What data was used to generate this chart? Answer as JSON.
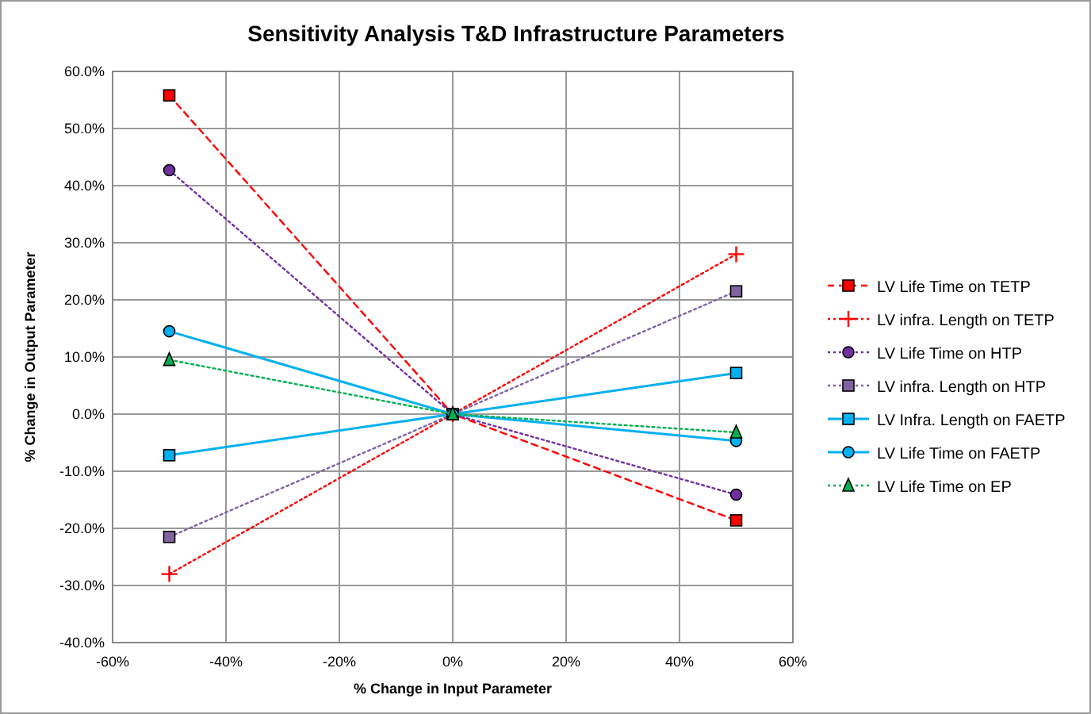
{
  "chart_data": {
    "type": "line",
    "title": "Sensitivity Analysis T&D Infrastructure Parameters",
    "xlabel": "% Change in Input Parameter",
    "ylabel": "% Change in Output Parameter",
    "x": [
      -50,
      0,
      50
    ],
    "xlim": [
      -60,
      60
    ],
    "ylim": [
      -40,
      60
    ],
    "xticks": [
      {
        "value": -60,
        "label": "-60%"
      },
      {
        "value": -40,
        "label": "-40%"
      },
      {
        "value": -20,
        "label": "-20%"
      },
      {
        "value": 0,
        "label": "0%"
      },
      {
        "value": 20,
        "label": "20%"
      },
      {
        "value": 40,
        "label": "40%"
      },
      {
        "value": 60,
        "label": "60%"
      }
    ],
    "yticks": [
      {
        "value": -40,
        "label": "-40.0%"
      },
      {
        "value": -30,
        "label": "-30.0%"
      },
      {
        "value": -20,
        "label": "-20.0%"
      },
      {
        "value": -10,
        "label": "-10.0%"
      },
      {
        "value": 0,
        "label": "0.0%"
      },
      {
        "value": 10,
        "label": "10.0%"
      },
      {
        "value": 20,
        "label": "20.0%"
      },
      {
        "value": 30,
        "label": "30.0%"
      },
      {
        "value": 40,
        "label": "40.0%"
      },
      {
        "value": 50,
        "label": "50.0%"
      },
      {
        "value": 60,
        "label": "60.0%"
      }
    ],
    "grid": true,
    "legend": "right",
    "series": [
      {
        "name": "LV Life Time on TETP",
        "color": "#ff0000",
        "values": [
          55.8,
          0,
          -18.6
        ],
        "marker": "square",
        "line_style": "dashed"
      },
      {
        "name": "LV infra. Length on TETP",
        "color": "#ff0000",
        "values": [
          -28,
          0,
          28
        ],
        "marker": "cross",
        "line_style": "dotted"
      },
      {
        "name": "LV Life Time on HTP",
        "color": "#7030a0",
        "values": [
          42.7,
          0,
          -14.1
        ],
        "marker": "circle",
        "line_style": "dotted"
      },
      {
        "name": "LV infra. Length on HTP",
        "color": "#8064a2",
        "values": [
          -21.5,
          0,
          21.5
        ],
        "marker": "square",
        "line_style": "dotted"
      },
      {
        "name": "LV Infra. Length on FAETP",
        "color": "#00b0f0",
        "values": [
          -7.2,
          0,
          7.2
        ],
        "marker": "square",
        "line_style": "solid"
      },
      {
        "name": "LV Life Time on FAETP",
        "color": "#00b0f0",
        "values": [
          14.5,
          0,
          -4.7
        ],
        "marker": "circle",
        "line_style": "solid"
      },
      {
        "name": "LV Life Time on EP",
        "color": "#00b050",
        "values": [
          9.5,
          0,
          -3.2
        ],
        "marker": "triangle",
        "line_style": "dotted"
      }
    ]
  }
}
